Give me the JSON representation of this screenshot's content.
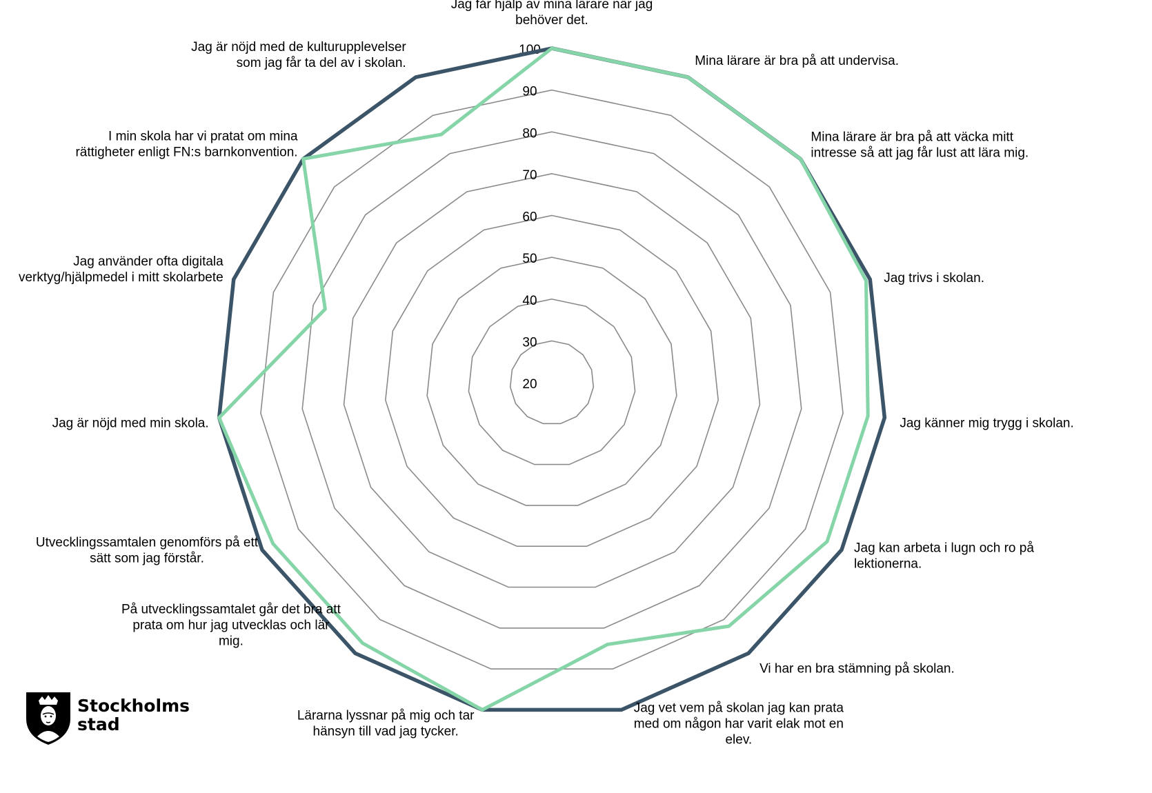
{
  "chart_data": {
    "type": "radar",
    "title": "",
    "rlim": [
      20,
      100
    ],
    "ticks": [
      20,
      30,
      40,
      50,
      60,
      70,
      80,
      90,
      100
    ],
    "grid": true,
    "categories": [
      "Jag får hjälp av mina lärare när jag behöver det.",
      "Mina lärare är bra på att undervisa.",
      "Mina lärare är bra på att väcka mitt intresse så att jag får lust att lära mig.",
      "Jag trivs i skolan.",
      "Jag känner mig trygg i skolan.",
      "Jag kan arbeta i lugn och ro på lektionerna.",
      "Vi har en bra stämning på skolan.",
      "Jag vet vem på skolan jag kan prata med om någon har varit elak mot en elev.",
      "Lärarna lyssnar på mig och tar hänsyn till vad jag tycker.",
      "På utvecklingssamtalet går det bra att prata om hur jag utvecklas och lär mig.",
      "Utvecklingssamtalen genomförs på ett sätt som jag förstår.",
      "Jag är nöjd med min skola.",
      "Jag använder ofta digitala verktyg/hjälpmedel i mitt skolarbete",
      "I min skola har vi pratat om mina rättigheter enligt FN:s barnkonvention.",
      "Jag är nöjd med de kulturupplevelser som jag får ta del av i skolan."
    ],
    "category_lines": [
      [
        "Jag får hjälp av mina lärare när jag",
        "behöver det."
      ],
      [
        "Mina lärare är bra på att undervisa."
      ],
      [
        "Mina lärare är bra på att väcka mitt",
        "intresse så att jag får lust att lära mig."
      ],
      [
        "Jag trivs i skolan."
      ],
      [
        "Jag känner mig trygg i skolan."
      ],
      [
        "Jag kan arbeta i lugn och ro på",
        "lektionerna."
      ],
      [
        "Vi har en bra stämning på skolan."
      ],
      [
        "Jag vet vem på skolan jag kan prata",
        "med om någon har varit elak mot en",
        "elev."
      ],
      [
        "Lärarna lyssnar på mig och tar",
        "hänsyn till vad jag tycker."
      ],
      [
        "På utvecklingssamtalet går det bra att",
        "prata om hur jag utvecklas och lär",
        "mig."
      ],
      [
        "Utvecklingssamtalen genomförs på ett",
        "sätt som jag förstår."
      ],
      [
        "Jag är nöjd med min skola."
      ],
      [
        "Jag använder ofta digitala",
        "verktyg/hjälpmedel i mitt skolarbete"
      ],
      [
        "I min skola har vi pratat om mina",
        "rättigheter enligt FN:s barnkonvention."
      ],
      [
        "Jag är nöjd med de kulturupplevelser",
        "som jag får ta del av i skolan."
      ]
    ],
    "series": [
      {
        "color": "#3b5468",
        "values": [
          100,
          100,
          100,
          100,
          100,
          100,
          100,
          100,
          100,
          100,
          100,
          100,
          100,
          100,
          100
        ]
      },
      {
        "color": "#86d5a8",
        "values": [
          100,
          100,
          100,
          99,
          96,
          96,
          92,
          84,
          100,
          97,
          97,
          100,
          77,
          100,
          85
        ]
      }
    ],
    "grid_color": "#8a8a8a"
  },
  "logo": {
    "line1": "Stockholms",
    "line2": "stad"
  }
}
